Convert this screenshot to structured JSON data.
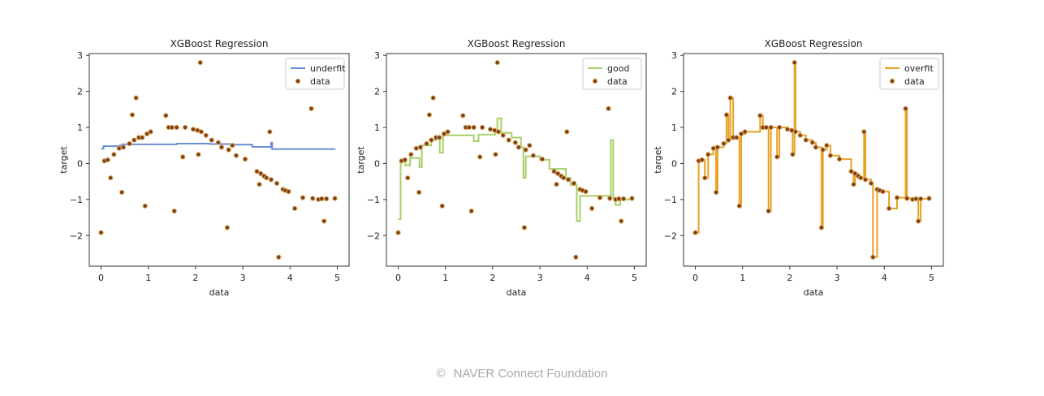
{
  "footer": {
    "copyright_symbol": "©",
    "text": "NAVER Connect Foundation"
  },
  "colors": {
    "underfit": "#6a8fd6",
    "good": "#a6d067",
    "overfit": "#e8a120",
    "data_face": "#7a3e10",
    "data_edge": "#d9a15a"
  },
  "chart_data": [
    {
      "type": "line+scatter",
      "title": "XGBoost Regression",
      "xlabel": "data",
      "ylabel": "target",
      "xlim": [
        -0.25,
        5.25
      ],
      "ylim": [
        -2.85,
        3.05
      ],
      "xticks": [
        0,
        1,
        2,
        3,
        4,
        5
      ],
      "yticks": [
        -2,
        -1,
        0,
        1,
        2,
        3
      ],
      "grid": false,
      "legend": {
        "position": "top-right",
        "entries": [
          "underfit",
          "data"
        ]
      },
      "series": [
        {
          "name": "underfit",
          "kind": "step-line",
          "color_key": "underfit",
          "points": [
            [
              0,
              0.41
            ],
            [
              0.05,
              0.48
            ],
            [
              0.4,
              0.5
            ],
            [
              0.45,
              0.53
            ],
            [
              1.6,
              0.55
            ],
            [
              2.3,
              0.54
            ],
            [
              2.8,
              0.52
            ],
            [
              3.2,
              0.46
            ],
            [
              3.58,
              0.45
            ],
            [
              3.6,
              0.58
            ],
            [
              3.62,
              0.4
            ],
            [
              4.95,
              0.39
            ]
          ]
        },
        {
          "name": "data",
          "kind": "scatter",
          "ref": "data_points"
        }
      ]
    },
    {
      "type": "line+scatter",
      "title": "XGBoost Regression",
      "xlabel": "data",
      "ylabel": "target",
      "xlim": [
        -0.25,
        5.25
      ],
      "ylim": [
        -2.85,
        3.05
      ],
      "xticks": [
        0,
        1,
        2,
        3,
        4,
        5
      ],
      "yticks": [
        -2,
        -1,
        0,
        1,
        2,
        3
      ],
      "grid": false,
      "legend": {
        "position": "top-right",
        "entries": [
          "good",
          "data"
        ]
      },
      "series": [
        {
          "name": "good",
          "kind": "step-line",
          "color_key": "good",
          "points": [
            [
              0,
              -1.55
            ],
            [
              0.05,
              0.1
            ],
            [
              0.15,
              -0.05
            ],
            [
              0.25,
              0.15
            ],
            [
              0.45,
              -0.1
            ],
            [
              0.5,
              0.5
            ],
            [
              0.7,
              0.65
            ],
            [
              0.8,
              0.75
            ],
            [
              0.88,
              0.3
            ],
            [
              0.95,
              0.78
            ],
            [
              1.5,
              0.78
            ],
            [
              1.6,
              0.62
            ],
            [
              1.7,
              0.8
            ],
            [
              2.05,
              0.88
            ],
            [
              2.1,
              1.25
            ],
            [
              2.18,
              0.85
            ],
            [
              2.4,
              0.72
            ],
            [
              2.6,
              0.45
            ],
            [
              2.65,
              -0.4
            ],
            [
              2.7,
              0.2
            ],
            [
              3.0,
              0.1
            ],
            [
              3.2,
              -0.15
            ],
            [
              3.55,
              -0.4
            ],
            [
              3.65,
              -0.6
            ],
            [
              3.78,
              -1.6
            ],
            [
              3.85,
              -0.9
            ],
            [
              4.3,
              -0.9
            ],
            [
              4.45,
              -0.9
            ],
            [
              4.5,
              0.65
            ],
            [
              4.55,
              -0.95
            ],
            [
              4.6,
              -1.15
            ],
            [
              4.7,
              -1.0
            ],
            [
              4.95,
              -0.98
            ]
          ]
        },
        {
          "name": "data",
          "kind": "scatter",
          "ref": "data_points"
        }
      ]
    },
    {
      "type": "line+scatter",
      "title": "XGBoost Regression",
      "xlabel": "data",
      "ylabel": "target",
      "xlim": [
        -0.25,
        5.25
      ],
      "ylim": [
        -2.85,
        3.05
      ],
      "xticks": [
        0,
        1,
        2,
        3,
        4,
        5
      ],
      "yticks": [
        -2,
        -1,
        0,
        1,
        2,
        3
      ],
      "grid": false,
      "legend": {
        "position": "top-right",
        "entries": [
          "overfit",
          "data"
        ]
      },
      "series": [
        {
          "name": "overfit",
          "kind": "step-line",
          "color_key": "overfit",
          "interpolate_through": "data_points"
        },
        {
          "name": "data",
          "kind": "scatter",
          "ref": "data_points"
        }
      ]
    }
  ],
  "data_points": [
    [
      0.0,
      -1.92
    ],
    [
      0.07,
      0.07
    ],
    [
      0.14,
      0.1
    ],
    [
      0.2,
      -0.4
    ],
    [
      0.27,
      0.25
    ],
    [
      0.38,
      0.42
    ],
    [
      0.44,
      -0.8
    ],
    [
      0.47,
      0.45
    ],
    [
      0.6,
      0.55
    ],
    [
      0.66,
      1.35
    ],
    [
      0.7,
      0.65
    ],
    [
      0.74,
      1.82
    ],
    [
      0.8,
      0.72
    ],
    [
      0.87,
      0.72
    ],
    [
      0.93,
      -1.18
    ],
    [
      0.97,
      0.82
    ],
    [
      1.05,
      0.88
    ],
    [
      1.37,
      1.33
    ],
    [
      1.43,
      1.0
    ],
    [
      1.5,
      1.0
    ],
    [
      1.55,
      -1.32
    ],
    [
      1.6,
      1.0
    ],
    [
      1.73,
      0.18
    ],
    [
      1.78,
      1.0
    ],
    [
      1.95,
      0.95
    ],
    [
      2.04,
      0.92
    ],
    [
      2.06,
      0.25
    ],
    [
      2.1,
      2.8
    ],
    [
      2.12,
      0.88
    ],
    [
      2.22,
      0.78
    ],
    [
      2.34,
      0.65
    ],
    [
      2.48,
      0.58
    ],
    [
      2.55,
      0.45
    ],
    [
      2.67,
      -1.78
    ],
    [
      2.7,
      0.38
    ],
    [
      2.78,
      0.5
    ],
    [
      2.86,
      0.22
    ],
    [
      3.05,
      0.12
    ],
    [
      3.3,
      -0.22
    ],
    [
      3.35,
      -0.58
    ],
    [
      3.38,
      -0.28
    ],
    [
      3.45,
      -0.35
    ],
    [
      3.5,
      -0.4
    ],
    [
      3.57,
      0.88
    ],
    [
      3.6,
      -0.45
    ],
    [
      3.72,
      -0.55
    ],
    [
      3.76,
      -2.6
    ],
    [
      3.85,
      -0.72
    ],
    [
      3.9,
      -0.75
    ],
    [
      3.97,
      -0.78
    ],
    [
      4.1,
      -1.25
    ],
    [
      4.27,
      -0.95
    ],
    [
      4.45,
      1.52
    ],
    [
      4.48,
      -0.97
    ],
    [
      4.6,
      -1.0
    ],
    [
      4.67,
      -0.98
    ],
    [
      4.72,
      -1.6
    ],
    [
      4.77,
      -0.98
    ],
    [
      4.95,
      -0.97
    ]
  ]
}
